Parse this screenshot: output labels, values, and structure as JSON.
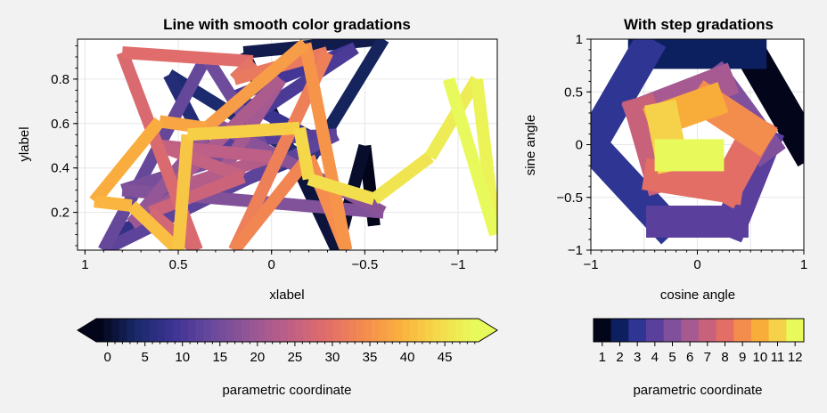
{
  "chart_data": [
    {
      "type": "line",
      "title": "Line with smooth color gradations",
      "xlabel": "xlabel",
      "ylabel": "ylabel",
      "xlim": [
        1.04,
        -1.21
      ],
      "ylim": [
        0.03,
        0.98
      ],
      "x_reversed": true,
      "xticks": [
        1,
        0.5,
        0,
        -0.5,
        -1
      ],
      "xtick_labels": [
        "1",
        "0.5",
        "0",
        "−0.5",
        "−1"
      ],
      "yticks": [
        0.2,
        0.4,
        0.6,
        0.8
      ],
      "ytick_labels": [
        "0.2",
        "0.4",
        "0.6",
        "0.8"
      ],
      "grid": true,
      "colormap": [
        "#03051a",
        "#1a2a6c",
        "#3f3495",
        "#6a4a9c",
        "#955696",
        "#bd5f86",
        "#df6c6c",
        "#f48a4f",
        "#fbb03e",
        "#f5d94a",
        "#e8fa5b"
      ],
      "color_range": [
        0,
        49
      ],
      "points": [
        {
          "x": -0.55,
          "y": 0.14
        },
        {
          "x": -0.5,
          "y": 0.5
        },
        {
          "x": -0.35,
          "y": 0.03
        },
        {
          "x": 0.15,
          "y": 0.92
        },
        {
          "x": -0.6,
          "y": 0.98
        },
        {
          "x": -0.2,
          "y": 0.43
        },
        {
          "x": 0.55,
          "y": 0.82
        },
        {
          "x": 0.25,
          "y": 0.33
        },
        {
          "x": 0.85,
          "y": 0.1
        },
        {
          "x": -0.3,
          "y": 0.5
        },
        {
          "x": 0.2,
          "y": 0.72
        },
        {
          "x": -0.45,
          "y": 0.94
        },
        {
          "x": 0.3,
          "y": 0.52
        },
        {
          "x": -0.35,
          "y": 0.55
        },
        {
          "x": 0.9,
          "y": 0.03
        },
        {
          "x": 0.35,
          "y": 0.9
        },
        {
          "x": 0.05,
          "y": 0.5
        },
        {
          "x": 0.8,
          "y": 0.3
        },
        {
          "x": -0.6,
          "y": 0.2
        },
        {
          "x": 0.3,
          "y": 0.6
        },
        {
          "x": 0.75,
          "y": 0.15
        },
        {
          "x": 0.25,
          "y": 0.4
        },
        {
          "x": -0.05,
          "y": 0.8
        },
        {
          "x": 0.55,
          "y": 0.3
        },
        {
          "x": 0.0,
          "y": 0.45
        },
        {
          "x": 0.6,
          "y": 0.5
        },
        {
          "x": 0.15,
          "y": 0.36
        },
        {
          "x": 0.65,
          "y": 0.2
        },
        {
          "x": 0.4,
          "y": 0.03
        },
        {
          "x": 0.8,
          "y": 0.92
        },
        {
          "x": 0.1,
          "y": 0.88
        },
        {
          "x": 0.2,
          "y": 0.8
        },
        {
          "x": -0.3,
          "y": 0.92
        },
        {
          "x": 0.2,
          "y": 0.03
        },
        {
          "x": -0.2,
          "y": 0.45
        },
        {
          "x": -0.4,
          "y": 0.03
        },
        {
          "x": -0.18,
          "y": 0.96
        },
        {
          "x": 0.35,
          "y": 0.58
        },
        {
          "x": 0.6,
          "y": 0.61
        },
        {
          "x": 0.95,
          "y": 0.25
        },
        {
          "x": 0.75,
          "y": 0.23
        },
        {
          "x": 0.5,
          "y": 0.03
        },
        {
          "x": 0.45,
          "y": 0.55
        },
        {
          "x": -0.15,
          "y": 0.58
        },
        {
          "x": -0.2,
          "y": 0.35
        },
        {
          "x": -0.55,
          "y": 0.26
        },
        {
          "x": -0.85,
          "y": 0.45
        },
        {
          "x": -1.1,
          "y": 0.8
        },
        {
          "x": -1.2,
          "y": 0.1
        },
        {
          "x": -0.95,
          "y": 0.8
        }
      ]
    },
    {
      "type": "line",
      "title": "With step gradations",
      "xlabel": "cosine angle",
      "ylabel": "sine angle",
      "xlim": [
        -1,
        1
      ],
      "ylim": [
        -1,
        1
      ],
      "xticks": [
        -1,
        0,
        1
      ],
      "xtick_labels": [
        "−1",
        "0",
        "1"
      ],
      "yticks": [
        -1,
        -0.5,
        0,
        0.5,
        1
      ],
      "ytick_labels": [
        "−1",
        "−0.5",
        "0",
        "0.5",
        "1"
      ],
      "grid": true,
      "levels": [
        1,
        2,
        3,
        4,
        5,
        6,
        7,
        8,
        9,
        10,
        11,
        12
      ],
      "segments": [
        {
          "level": 1,
          "x": [
            1.0,
            0.5
          ],
          "y": [
            0.0,
            0.87
          ]
        },
        {
          "level": 2,
          "x": [
            0.5,
            -0.5
          ],
          "y": [
            0.87,
            0.87
          ]
        },
        {
          "level": 3,
          "x": [
            -0.5,
            -1.0
          ],
          "y": [
            0.87,
            0.0
          ]
        },
        {
          "level": 3,
          "x": [
            -1.0,
            -0.33
          ],
          "y": [
            0.0,
            -0.73
          ]
        },
        {
          "level": 4,
          "x": [
            -0.33,
            0.33
          ],
          "y": [
            -0.73,
            -0.73
          ]
        },
        {
          "level": 4,
          "x": [
            0.33,
            0.62
          ],
          "y": [
            -0.73,
            0.0
          ]
        },
        {
          "level": 5,
          "x": [
            0.62,
            0.2
          ],
          "y": [
            0.0,
            0.58
          ]
        },
        {
          "level": 6,
          "x": [
            0.2,
            -0.52
          ],
          "y": [
            0.58,
            0.3
          ]
        },
        {
          "level": 7,
          "x": [
            -0.52,
            -0.35
          ],
          "y": [
            0.3,
            -0.3
          ]
        },
        {
          "level": 8,
          "x": [
            -0.35,
            0.28
          ],
          "y": [
            -0.3,
            -0.4
          ]
        },
        {
          "level": 8,
          "x": [
            0.28,
            0.55
          ],
          "y": [
            -0.4,
            0.1
          ]
        },
        {
          "level": 9,
          "x": [
            0.55,
            0.1
          ],
          "y": [
            0.1,
            0.4
          ]
        },
        {
          "level": 10,
          "x": [
            0.1,
            -0.32
          ],
          "y": [
            0.4,
            0.25
          ]
        },
        {
          "level": 11,
          "x": [
            -0.32,
            -0.25
          ],
          "y": [
            0.25,
            -0.1
          ]
        },
        {
          "level": 12,
          "x": [
            -0.25,
            0.1
          ],
          "y": [
            -0.1,
            -0.1
          ]
        }
      ]
    }
  ],
  "colorbars": [
    {
      "label": "parametric coordinate",
      "ticks": [
        0,
        5,
        10,
        15,
        20,
        25,
        30,
        35,
        40,
        45
      ],
      "tick_labels": [
        "0",
        "5",
        "10",
        "15",
        "20",
        "25",
        "30",
        "35",
        "40",
        "45"
      ],
      "range": [
        -1.5,
        49.5
      ],
      "extend": "both"
    },
    {
      "label": "parametric coordinate",
      "ticks": [
        1,
        2,
        3,
        4,
        5,
        6,
        7,
        8,
        9,
        10,
        11,
        12
      ],
      "tick_labels": [
        "1",
        "2",
        "3",
        "4",
        "5",
        "6",
        "7",
        "8",
        "9",
        "10",
        "11",
        "12"
      ],
      "colors": [
        "#03051a",
        "#0c2060",
        "#2f3592",
        "#5a3f9d",
        "#80509c",
        "#a65a91",
        "#c8627a",
        "#e36e66",
        "#f38d4e",
        "#f8ad3b",
        "#f6d24a",
        "#e8fa5b"
      ]
    }
  ]
}
